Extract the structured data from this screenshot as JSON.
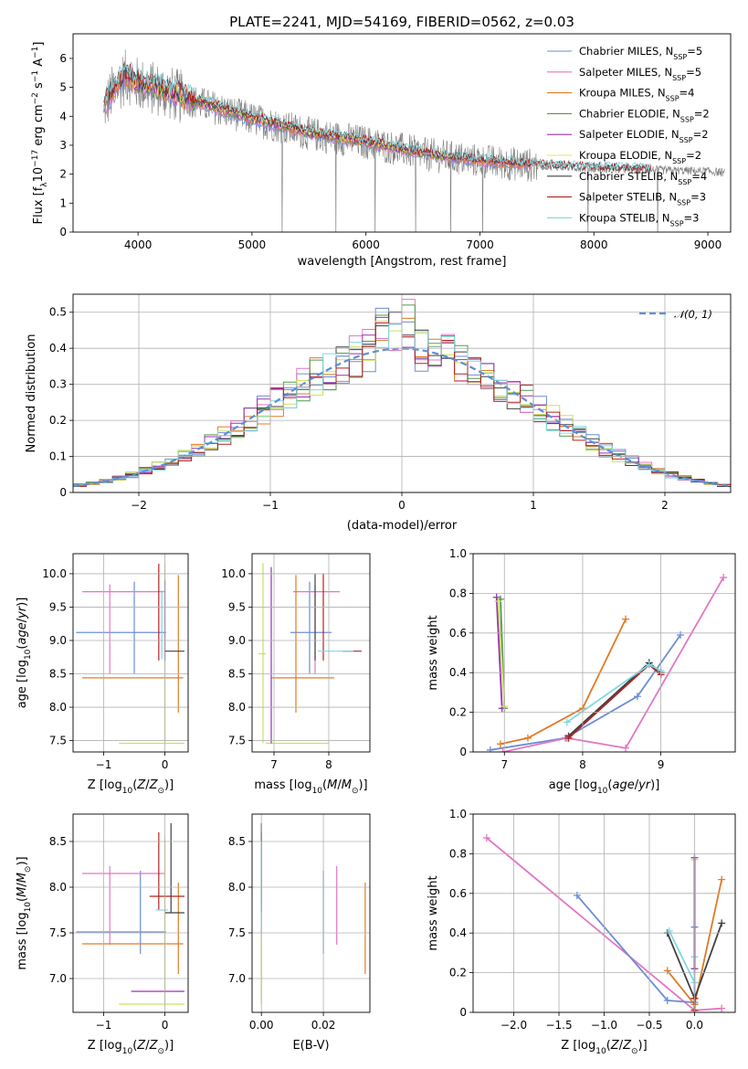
{
  "figure": {
    "title": "PLATE=2241, MJD=54169, FIBERID=0562, z=0.03"
  },
  "chart_data": [
    {
      "id": "spectrum",
      "type": "line",
      "xlabel": "wavelength [Angstrom, rest frame]",
      "ylabel": "Flux [f_λ 10^-17 erg cm^-2 s^-1 A^-1]",
      "xlim": [
        3430,
        9200
      ],
      "ylim": [
        0,
        6.85
      ],
      "xticks": [
        4000,
        5000,
        6000,
        7000,
        8000,
        9000
      ],
      "yticks": [
        0,
        1,
        2,
        3,
        4,
        5,
        6
      ],
      "grid": false,
      "legend_position": "top-right",
      "data_series": {
        "name": "",
        "color": "#7f7f7f",
        "x_range": [
          3700,
          9150
        ],
        "anchors": [
          [
            3700,
            4.3
          ],
          [
            3800,
            5.0
          ],
          [
            3900,
            5.4
          ],
          [
            4000,
            5.1
          ],
          [
            4200,
            4.9
          ],
          [
            4500,
            4.5
          ],
          [
            5000,
            3.9
          ],
          [
            5500,
            3.4
          ],
          [
            6000,
            3.1
          ],
          [
            6500,
            2.7
          ],
          [
            7000,
            2.45
          ],
          [
            7500,
            2.3
          ],
          [
            8000,
            2.2
          ],
          [
            8500,
            2.15
          ],
          [
            9000,
            2.1
          ],
          [
            9150,
            2.05
          ]
        ],
        "noise": 0.6
      },
      "models": [
        {
          "name": "Chabrier MILES",
          "nssp": "5",
          "color": "#6b8ed6",
          "x_range": [
            3700,
            7450
          ]
        },
        {
          "name": "Salpeter MILES",
          "nssp": "5",
          "color": "#e377c2",
          "x_range": [
            3700,
            7450
          ]
        },
        {
          "name": "Kroupa MILES",
          "nssp": "4",
          "color": "#e07b25",
          "x_range": [
            3700,
            7450
          ]
        },
        {
          "name": "Chabrier ELODIE",
          "nssp": "2",
          "color": "#4e9a4e",
          "x_range": [
            3900,
            6800
          ]
        },
        {
          "name": "Salpeter ELODIE",
          "nssp": "2",
          "color": "#9b30b5",
          "x_range": [
            3900,
            6800
          ]
        },
        {
          "name": "Kroupa ELODIE",
          "nssp": "2",
          "color": "#e8e35a",
          "x_range": [
            3900,
            6800
          ]
        },
        {
          "name": "Chabrier STELIB",
          "nssp": "4",
          "color": "#404040",
          "x_range": [
            3700,
            8500
          ]
        },
        {
          "name": "Salpeter STELIB",
          "nssp": "3",
          "color": "#b22222",
          "x_range": [
            3700,
            8500
          ]
        },
        {
          "name": "Kroupa STELIB",
          "nssp": "3",
          "color": "#7fd8e0",
          "x_range": [
            3700,
            8500
          ]
        }
      ]
    },
    {
      "id": "residuals",
      "type": "line",
      "xlabel": "(data-model)/error",
      "ylabel": "Normed distribution",
      "xlim": [
        -2.5,
        2.5
      ],
      "ylim": [
        0,
        0.55
      ],
      "xticks": [
        -2,
        -1,
        0,
        1,
        2
      ],
      "yticks": [
        0.0,
        0.1,
        0.2,
        0.3,
        0.4,
        0.5
      ],
      "grid": true,
      "legend_position": "top-right",
      "gaussian_label": "𝒩(0, 1)",
      "gaussian_color": "#5b8fd6",
      "bin_width": 0.1,
      "histogram_colors": [
        "#6b8ed6",
        "#e377c2",
        "#e07b25",
        "#4e9a4e",
        "#9b30b5",
        "#c9e25a",
        "#404040",
        "#b22222",
        "#7fd8e0"
      ]
    },
    {
      "id": "age-vs-Z",
      "type": "scatter",
      "xlabel": "Z [log10(Z/Z⊙)]",
      "ylabel": "age  [log10(age/yr)]",
      "xlim": [
        -1.5,
        0.38
      ],
      "ylim": [
        7.33,
        10.3
      ],
      "xticks": [
        -1,
        0
      ],
      "yticks": [
        7.5,
        8.0,
        8.5,
        9.0,
        9.5,
        10.0
      ],
      "grid": true,
      "errorbars": [
        {
          "color": "#6b8ed6",
          "x": -0.5,
          "y": 9.12,
          "x0": -1.45,
          "x1": 0.02,
          "y0": 8.5,
          "y1": 9.88
        },
        {
          "color": "#e377c2",
          "x": -0.9,
          "y": 9.73,
          "x0": -1.35,
          "x1": 0.0,
          "y0": 8.5,
          "y1": 9.84
        },
        {
          "color": "#e07b25",
          "x": -0.4,
          "y": 8.44,
          "x0": -1.35,
          "x1": 0.3,
          "y0": 8.44,
          "y1": 8.44
        },
        {
          "color": "#e07b25",
          "x": 0.22,
          "y": 8.9,
          "x0": 0.22,
          "x1": 0.22,
          "y0": 7.92,
          "y1": 9.98
        },
        {
          "color": "#c9e25a",
          "x": 0.0,
          "y": 8.8,
          "x0": 0.0,
          "x1": 0.0,
          "y0": 7.46,
          "y1": 10.16
        },
        {
          "color": "#c9e25a",
          "x": -0.4,
          "y": 7.46,
          "x0": -0.75,
          "x1": 0.32,
          "y0": 7.46,
          "y1": 7.46
        },
        {
          "color": "#9b30b5",
          "x": 0.0,
          "y": 8.8,
          "x0": 0.0,
          "x1": 0.0,
          "y0": 8.7,
          "y1": 9.9
        },
        {
          "color": "#b22222",
          "x": -0.1,
          "y": 9.5,
          "x0": -0.1,
          "x1": -0.1,
          "y0": 8.7,
          "y1": 10.15
        },
        {
          "color": "#404040",
          "x": 0.0,
          "y": 8.84,
          "x0": 0.0,
          "x1": 0.32,
          "y0": 8.84,
          "y1": 8.84
        },
        {
          "color": "#7fd8e0",
          "x": -0.05,
          "y": 9.3,
          "x0": -0.05,
          "x1": -0.05,
          "y0": 8.72,
          "y1": 9.75
        }
      ]
    },
    {
      "id": "age-vs-mass",
      "type": "scatter",
      "xlabel": "mass [log10(M/M⊙)]",
      "ylabel": "",
      "xlim": [
        6.6,
        8.75
      ],
      "ylim": [
        7.33,
        10.3
      ],
      "xticks": [
        7,
        8
      ],
      "yticks": [
        7.5,
        8.0,
        8.5,
        9.0,
        9.5,
        10.0
      ],
      "grid": true,
      "errorbars": [
        {
          "color": "#6b8ed6",
          "x": 7.65,
          "y": 9.12,
          "x0": 7.3,
          "x1": 8.05,
          "y0": 8.5,
          "y1": 9.88
        },
        {
          "color": "#e377c2",
          "x": 7.75,
          "y": 9.73,
          "x0": 7.35,
          "x1": 8.2,
          "y0": 8.5,
          "y1": 9.84
        },
        {
          "color": "#e07b25",
          "x": 7.4,
          "y": 8.44,
          "x0": 6.95,
          "x1": 8.1,
          "y0": 7.92,
          "y1": 9.98
        },
        {
          "color": "#c9e25a",
          "x": 6.8,
          "y": 8.8,
          "x0": 6.72,
          "x1": 6.85,
          "y0": 7.46,
          "y1": 10.16
        },
        {
          "color": "#c9e25a",
          "x": 7.2,
          "y": 7.46,
          "x0": 6.85,
          "x1": 8.0,
          "y0": 7.46,
          "y1": 7.46
        },
        {
          "color": "#9b30b5",
          "x": 6.95,
          "y": 9.0,
          "x0": 6.95,
          "x1": 6.95,
          "y0": 7.46,
          "y1": 10.1
        },
        {
          "color": "#b22222",
          "x": 7.9,
          "y": 9.5,
          "x0": 7.9,
          "x1": 7.9,
          "y0": 8.7,
          "y1": 10.0
        },
        {
          "color": "#b22222",
          "x": 8.4,
          "y": 8.84,
          "x0": 8.25,
          "x1": 8.6,
          "y0": 8.84,
          "y1": 8.84
        },
        {
          "color": "#404040",
          "x": 7.75,
          "y": 9.3,
          "x0": 7.75,
          "x1": 7.75,
          "y0": 8.7,
          "y1": 10.0
        },
        {
          "color": "#7fd8e0",
          "x": 8.0,
          "y": 8.84,
          "x0": 7.8,
          "x1": 8.45,
          "y0": 8.84,
          "y1": 8.84
        }
      ]
    },
    {
      "id": "weight-vs-age",
      "type": "line",
      "xlabel": "age  [log10(age/yr)]",
      "ylabel": "mass weight",
      "xlim": [
        6.6,
        9.95
      ],
      "ylim": [
        0,
        1.0
      ],
      "xticks": [
        7,
        8,
        9
      ],
      "yticks": [
        0.0,
        0.2,
        0.4,
        0.6,
        0.8,
        1.0
      ],
      "grid": true,
      "series": [
        {
          "color": "#6b8ed6",
          "x": [
            6.82,
            7.78,
            8.7,
            9.25
          ],
          "y": [
            0.01,
            0.07,
            0.28,
            0.59
          ]
        },
        {
          "color": "#e377c2",
          "x": [
            6.98,
            7.8,
            8.55,
            9.8
          ],
          "y": [
            0.0,
            0.07,
            0.02,
            0.88
          ]
        },
        {
          "color": "#e07b25",
          "x": [
            6.95,
            7.3,
            8.0,
            8.55
          ],
          "y": [
            0.04,
            0.07,
            0.22,
            0.67
          ]
        },
        {
          "color": "#4e9a4e",
          "x": [
            6.95,
            7.0
          ],
          "y": [
            0.77,
            0.22
          ]
        },
        {
          "color": "#9b30b5",
          "x": [
            6.9,
            6.97
          ],
          "y": [
            0.78,
            0.22
          ]
        },
        {
          "color": "#c9e25a",
          "x": [
            6.92,
            7.0
          ],
          "y": [
            0.76,
            0.23
          ]
        },
        {
          "color": "#404040",
          "x": [
            7.82,
            8.85,
            9.0
          ],
          "y": [
            0.08,
            0.45,
            0.4
          ]
        },
        {
          "color": "#b22222",
          "x": [
            7.82,
            8.85,
            9.0
          ],
          "y": [
            0.07,
            0.44,
            0.39
          ]
        },
        {
          "color": "#7fd8e0",
          "x": [
            7.8,
            8.85,
            9.0
          ],
          "y": [
            0.15,
            0.44,
            0.41
          ]
        }
      ]
    },
    {
      "id": "mass-vs-Z",
      "type": "scatter",
      "xlabel": "Z [log10(Z/Z⊙)]",
      "ylabel": "mass [log10(M/M⊙)]",
      "xlim": [
        -1.5,
        0.38
      ],
      "ylim": [
        6.63,
        8.8
      ],
      "xticks": [
        -1,
        0
      ],
      "yticks": [
        7.0,
        7.5,
        8.0,
        8.5
      ],
      "grid": true,
      "errorbars": [
        {
          "color": "#6b8ed6",
          "x": -0.4,
          "y": 7.51,
          "x0": -1.45,
          "x1": 0.02,
          "y0": 7.27,
          "y1": 8.18
        },
        {
          "color": "#e377c2",
          "x": -0.9,
          "y": 8.15,
          "x0": -1.35,
          "x1": 0.0,
          "y0": 7.37,
          "y1": 8.23
        },
        {
          "color": "#e07b25",
          "x": -0.4,
          "y": 7.38,
          "x0": -1.35,
          "x1": 0.3,
          "y0": 7.38,
          "y1": 7.38
        },
        {
          "color": "#e07b25",
          "x": 0.22,
          "y": 7.9,
          "x0": 0.22,
          "x1": 0.22,
          "y0": 7.05,
          "y1": 8.05
        },
        {
          "color": "#c9e25a",
          "x": 0.0,
          "y": 7.8,
          "x0": 0.0,
          "x1": 0.0,
          "y0": 6.72,
          "y1": 8.55
        },
        {
          "color": "#c9e25a",
          "x": -0.5,
          "y": 6.72,
          "x0": -0.75,
          "x1": 0.32,
          "y0": 6.72,
          "y1": 6.72
        },
        {
          "color": "#9b30b5",
          "x": -0.2,
          "y": 6.86,
          "x0": -0.55,
          "x1": 0.32,
          "y0": 6.86,
          "y1": 6.86
        },
        {
          "color": "#b22222",
          "x": -0.1,
          "y": 8.2,
          "x0": -0.1,
          "x1": -0.1,
          "y0": 7.75,
          "y1": 8.6
        },
        {
          "color": "#b22222",
          "x": 0.1,
          "y": 7.9,
          "x0": -0.25,
          "x1": 0.32,
          "y0": 7.9,
          "y1": 7.9
        },
        {
          "color": "#404040",
          "x": 0.1,
          "y": 7.72,
          "x0": 0.0,
          "x1": 0.32,
          "y0": 7.72,
          "y1": 7.72
        },
        {
          "color": "#404040",
          "x": 0.1,
          "y": 8.2,
          "x0": 0.1,
          "x1": 0.1,
          "y0": 7.72,
          "y1": 8.7
        },
        {
          "color": "#7fd8e0",
          "x": -0.05,
          "y": 7.75,
          "x0": -0.15,
          "x1": 0.05,
          "y0": 7.75,
          "y1": 7.75
        }
      ]
    },
    {
      "id": "mass-vs-EBV",
      "type": "scatter",
      "xlabel": "E(B-V)",
      "ylabel": "",
      "xlim": [
        -0.003,
        0.035
      ],
      "ylim": [
        6.63,
        8.8
      ],
      "xticks": [
        0.0,
        0.02
      ],
      "xtick_labels": [
        "0.00",
        "0.02"
      ],
      "yticks": [
        7.0,
        7.5,
        8.0,
        8.5
      ],
      "grid": true,
      "errorbars": [
        {
          "color": "#6b8ed6",
          "x": 0.02,
          "y": 7.7,
          "x0": 0.02,
          "x1": 0.02,
          "y0": 7.27,
          "y1": 8.18
        },
        {
          "color": "#e377c2",
          "x": 0.0243,
          "y": 7.8,
          "x0": 0.0243,
          "x1": 0.0243,
          "y0": 7.37,
          "y1": 8.23
        },
        {
          "color": "#e07b25",
          "x": 0.0335,
          "y": 7.5,
          "x0": 0.0335,
          "x1": 0.0335,
          "y0": 7.05,
          "y1": 8.05
        },
        {
          "color": "#c9e25a",
          "x": 0.0,
          "y": 7.8,
          "x0": 0.0,
          "x1": 0.0,
          "y0": 6.72,
          "y1": 8.55
        },
        {
          "color": "#b22222",
          "x": 0.0,
          "y": 8.3,
          "x0": 0.0,
          "x1": 0.0,
          "y0": 7.75,
          "y1": 8.6
        },
        {
          "color": "#404040",
          "x": 0.0,
          "y": 8.3,
          "x0": 0.0,
          "x1": 0.0,
          "y0": 7.72,
          "y1": 8.7
        },
        {
          "color": "#7fd8e0",
          "x": 0.0,
          "y": 8.0,
          "x0": 0.0,
          "x1": 0.0,
          "y0": 7.5,
          "y1": 8.5
        }
      ]
    },
    {
      "id": "weight-vs-Z",
      "type": "line",
      "xlabel": "Z [log10(Z/Z⊙)]",
      "ylabel": "mass weight",
      "xlim": [
        -2.45,
        0.45
      ],
      "ylim": [
        0,
        1.0
      ],
      "xticks": [
        -2.0,
        -1.5,
        -1.0,
        -0.5,
        0.0
      ],
      "xtick_labels": [
        "−2.0",
        "−1.5",
        "−1.0",
        "−0.5",
        "0.0"
      ],
      "yticks": [
        0.0,
        0.2,
        0.4,
        0.6,
        0.8,
        1.0
      ],
      "grid": true,
      "series": [
        {
          "color": "#e377c2",
          "x": [
            -2.3,
            0.0,
            0.3
          ],
          "y": [
            0.88,
            0.01,
            0.02
          ]
        },
        {
          "color": "#6b8ed6",
          "x": [
            -1.3,
            -0.3,
            0.0,
            0.0
          ],
          "y": [
            0.59,
            0.06,
            0.05,
            0.43
          ]
        },
        {
          "color": "#e07b25",
          "x": [
            -0.3,
            0.0,
            0.3
          ],
          "y": [
            0.21,
            0.04,
            0.67
          ]
        },
        {
          "color": "#404040",
          "x": [
            -0.3,
            0.0,
            0.3
          ],
          "y": [
            0.4,
            0.07,
            0.45
          ]
        },
        {
          "color": "#7fd8e0",
          "x": [
            -0.28,
            0.0,
            0.0
          ],
          "y": [
            0.41,
            0.15,
            0.28
          ]
        },
        {
          "color": "#c9e25a",
          "x": [
            0.0,
            0.0
          ],
          "y": [
            0.77,
            0.22
          ]
        },
        {
          "color": "#9b30b5",
          "x": [
            0.0,
            0.0
          ],
          "y": [
            0.78,
            0.22
          ]
        },
        {
          "color": "#b22222",
          "x": [
            0.0,
            0.0
          ],
          "y": [
            0.07,
            0.01
          ]
        }
      ]
    }
  ]
}
